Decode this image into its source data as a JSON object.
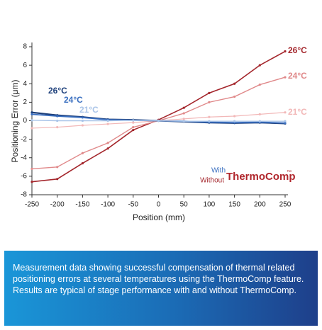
{
  "chart_data": {
    "type": "line",
    "ylabel": "Positioning Error (μm)",
    "xlabel": "Position (mm)",
    "x": [
      -250,
      -200,
      -150,
      -100,
      -50,
      0,
      50,
      100,
      150,
      200,
      250
    ],
    "xlim": [
      -250,
      250
    ],
    "xticks": [
      -250,
      -200,
      -150,
      -100,
      -50,
      0,
      50,
      100,
      150,
      200,
      250
    ],
    "ylim": [
      -8,
      8
    ],
    "yticks": [
      -8,
      -6,
      -4,
      -2,
      0,
      2,
      4,
      6,
      8
    ],
    "grid": false,
    "series": [
      {
        "name": "26°C",
        "color": "#a4262c",
        "values": [
          -6.6,
          -6.3,
          -4.6,
          -3.0,
          -1.0,
          0.1,
          1.4,
          3.0,
          4.0,
          6.0,
          7.5
        ]
      },
      {
        "name": "24°C",
        "color": "#e0898a",
        "values": [
          -5.2,
          -5.0,
          -3.5,
          -2.4,
          -0.7,
          0.0,
          0.8,
          2.0,
          2.6,
          3.9,
          4.7
        ]
      },
      {
        "name": "21°C",
        "color": "#f2b8b8",
        "values": [
          -0.8,
          -0.7,
          -0.5,
          -0.35,
          -0.2,
          0.0,
          0.2,
          0.4,
          0.5,
          0.7,
          0.9
        ]
      },
      {
        "name": "26°C",
        "color": "#1d3f7a",
        "values": [
          0.9,
          0.6,
          0.4,
          0.15,
          0.1,
          0.0,
          -0.1,
          -0.2,
          -0.25,
          -0.2,
          -0.3
        ]
      },
      {
        "name": "24°C",
        "color": "#3a6fc0",
        "values": [
          0.7,
          0.5,
          0.35,
          0.1,
          0.05,
          0.0,
          -0.05,
          -0.15,
          -0.2,
          -0.15,
          -0.25
        ]
      },
      {
        "name": "21°C",
        "color": "#a9c4e8",
        "values": [
          0.05,
          0.0,
          0.0,
          0.0,
          0.05,
          0.0,
          -0.05,
          -0.05,
          -0.05,
          -0.05,
          -0.05
        ]
      }
    ],
    "legend": {
      "with": "With",
      "without": "Without",
      "brand": "ThermoComp",
      "trademark": "™"
    }
  },
  "caption": "Measurement data showing successful compensation of thermal related positioning errors at several temperatures using the ThermoComp feature. Results are typical of stage performance with and without ThermoComp."
}
